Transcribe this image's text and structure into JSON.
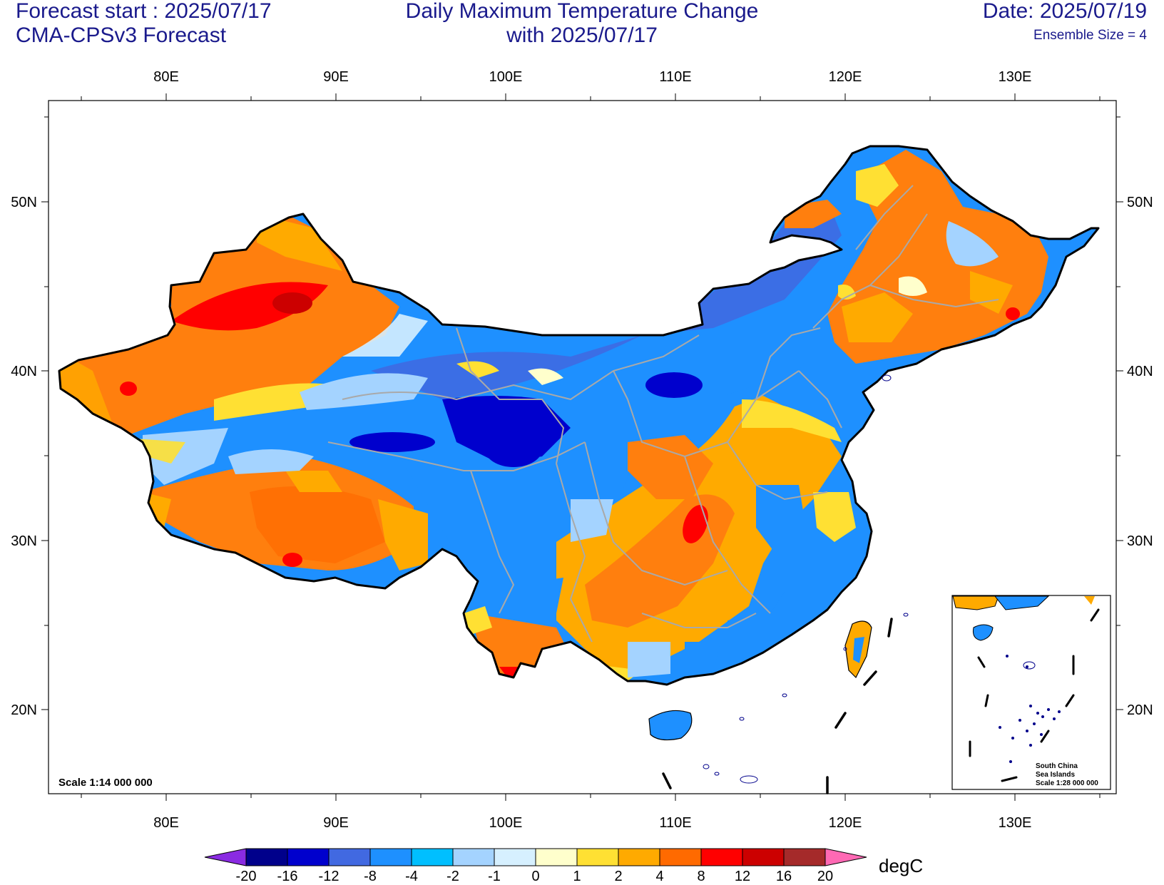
{
  "header": {
    "forecast_start": "Forecast start : 2025/07/17",
    "model": "CMA-CPSv3 Forecast",
    "title_line1": "Daily Maximum Temperature Change",
    "title_line2": "with 2025/07/17",
    "date": "Date: 2025/07/19",
    "ensemble": "Ensemble Size = 4"
  },
  "axes": {
    "lon_labels": [
      "80E",
      "90E",
      "100E",
      "110E",
      "120E",
      "130E"
    ],
    "lat_labels": [
      "50N",
      "40N",
      "30N",
      "20N"
    ]
  },
  "scale_label": "Scale 1:14 000 000",
  "inset": {
    "line1": "South China",
    "line2": "Sea Islands",
    "line3": "Scale 1:28 000 000"
  },
  "colorbar": {
    "unit": "degC",
    "labels": [
      "-20",
      "-16",
      "-12",
      "-8",
      "-4",
      "-2",
      "-1",
      "0",
      "1",
      "2",
      "4",
      "8",
      "12",
      "16",
      "20"
    ],
    "colors": [
      "#8a2be2",
      "#00008b",
      "#0000cd",
      "#4169e1",
      "#1e90ff",
      "#00bfff",
      "#a4d3ff",
      "#d6f0ff",
      "#ffffcc",
      "#ffe033",
      "#ffaa00",
      "#ff6a00",
      "#ff0000",
      "#cc0000",
      "#a52a2a",
      "#ff69b4"
    ]
  },
  "map_colors": {
    "hot_orange": "#ff7f0e",
    "light_orange": "#ffaa00",
    "yellow": "#ffe033",
    "pale_yellow": "#ffffcc",
    "pale_blue": "#d6f0ff",
    "light_blue": "#a4d3ff",
    "cyan": "#00bfff",
    "blue": "#1e90ff",
    "mid_blue": "#4169e1",
    "deep_blue": "#0000cd",
    "red": "#ff0000",
    "dark_red": "#cc0000"
  }
}
